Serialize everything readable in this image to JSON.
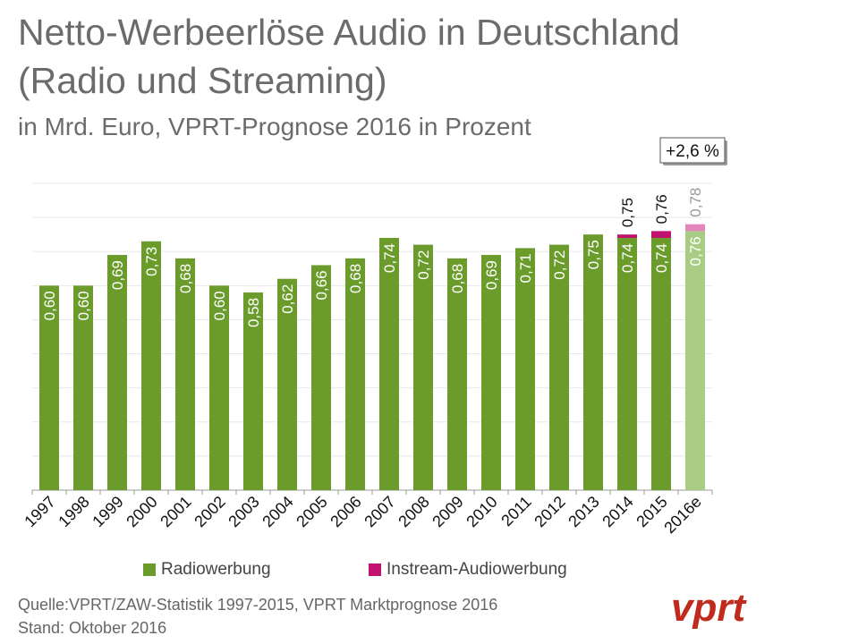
{
  "header": {
    "title_line1": "Netto-Werbeerlöse Audio in Deutschland",
    "title_line2": "(Radio und Streaming)",
    "subtitle": "in Mrd. Euro, VPRT-Prognose 2016 in Prozent"
  },
  "footer": {
    "source": "Quelle:VPRT/ZAW-Statistik 1997-2015, VPRT Marktprognose 2016",
    "stand": "Stand:  Oktober 2016",
    "logo_text": "vprt"
  },
  "colors": {
    "radio": "#6a9b2b",
    "radio_forecast": "#a9cc84",
    "instream": "#c0126e",
    "instream_forecast": "#e486b9",
    "grid": "#e8e8e8",
    "axis": "#999999",
    "logo": "#c02b1e"
  },
  "chart_data": {
    "type": "bar",
    "stacked": true,
    "categories": [
      "1997",
      "1998",
      "1999",
      "2000",
      "2001",
      "2002",
      "2003",
      "2004",
      "2005",
      "2006",
      "2007",
      "2008",
      "2009",
      "2010",
      "2011",
      "2012",
      "2013",
      "2014",
      "2015",
      "2016e"
    ],
    "series": [
      {
        "name": "Radiowerbung",
        "values": [
          0.6,
          0.6,
          0.69,
          0.73,
          0.68,
          0.6,
          0.58,
          0.62,
          0.66,
          0.68,
          0.74,
          0.72,
          0.68,
          0.69,
          0.71,
          0.72,
          0.75,
          0.74,
          0.74,
          0.76
        ]
      },
      {
        "name": "Instream-Audiowerbung",
        "values": [
          0,
          0,
          0,
          0,
          0,
          0,
          0,
          0,
          0,
          0,
          0,
          0,
          0,
          0,
          0,
          0,
          0,
          0.01,
          0.02,
          0.02
        ]
      }
    ],
    "bar_labels": [
      "0,60",
      "0,60",
      "0,69",
      "0,73",
      "0,68",
      "0,60",
      "0,58",
      "0,62",
      "0,66",
      "0,68",
      "0,74",
      "0,72",
      "0,68",
      "0,69",
      "0,71",
      "0,72",
      "0,75",
      "0,74",
      "0,74",
      "0,76"
    ],
    "total_labels": [
      {
        "category": "2014",
        "text": "0,75"
      },
      {
        "category": "2015",
        "text": "0,76"
      },
      {
        "category": "2016e",
        "text": "0,78"
      }
    ],
    "forecast_category": "2016e",
    "callout": {
      "text": "+2,6 %",
      "category": "2016e"
    },
    "ylim": [
      0,
      0.9
    ],
    "grid": true,
    "legend": "bottom"
  }
}
